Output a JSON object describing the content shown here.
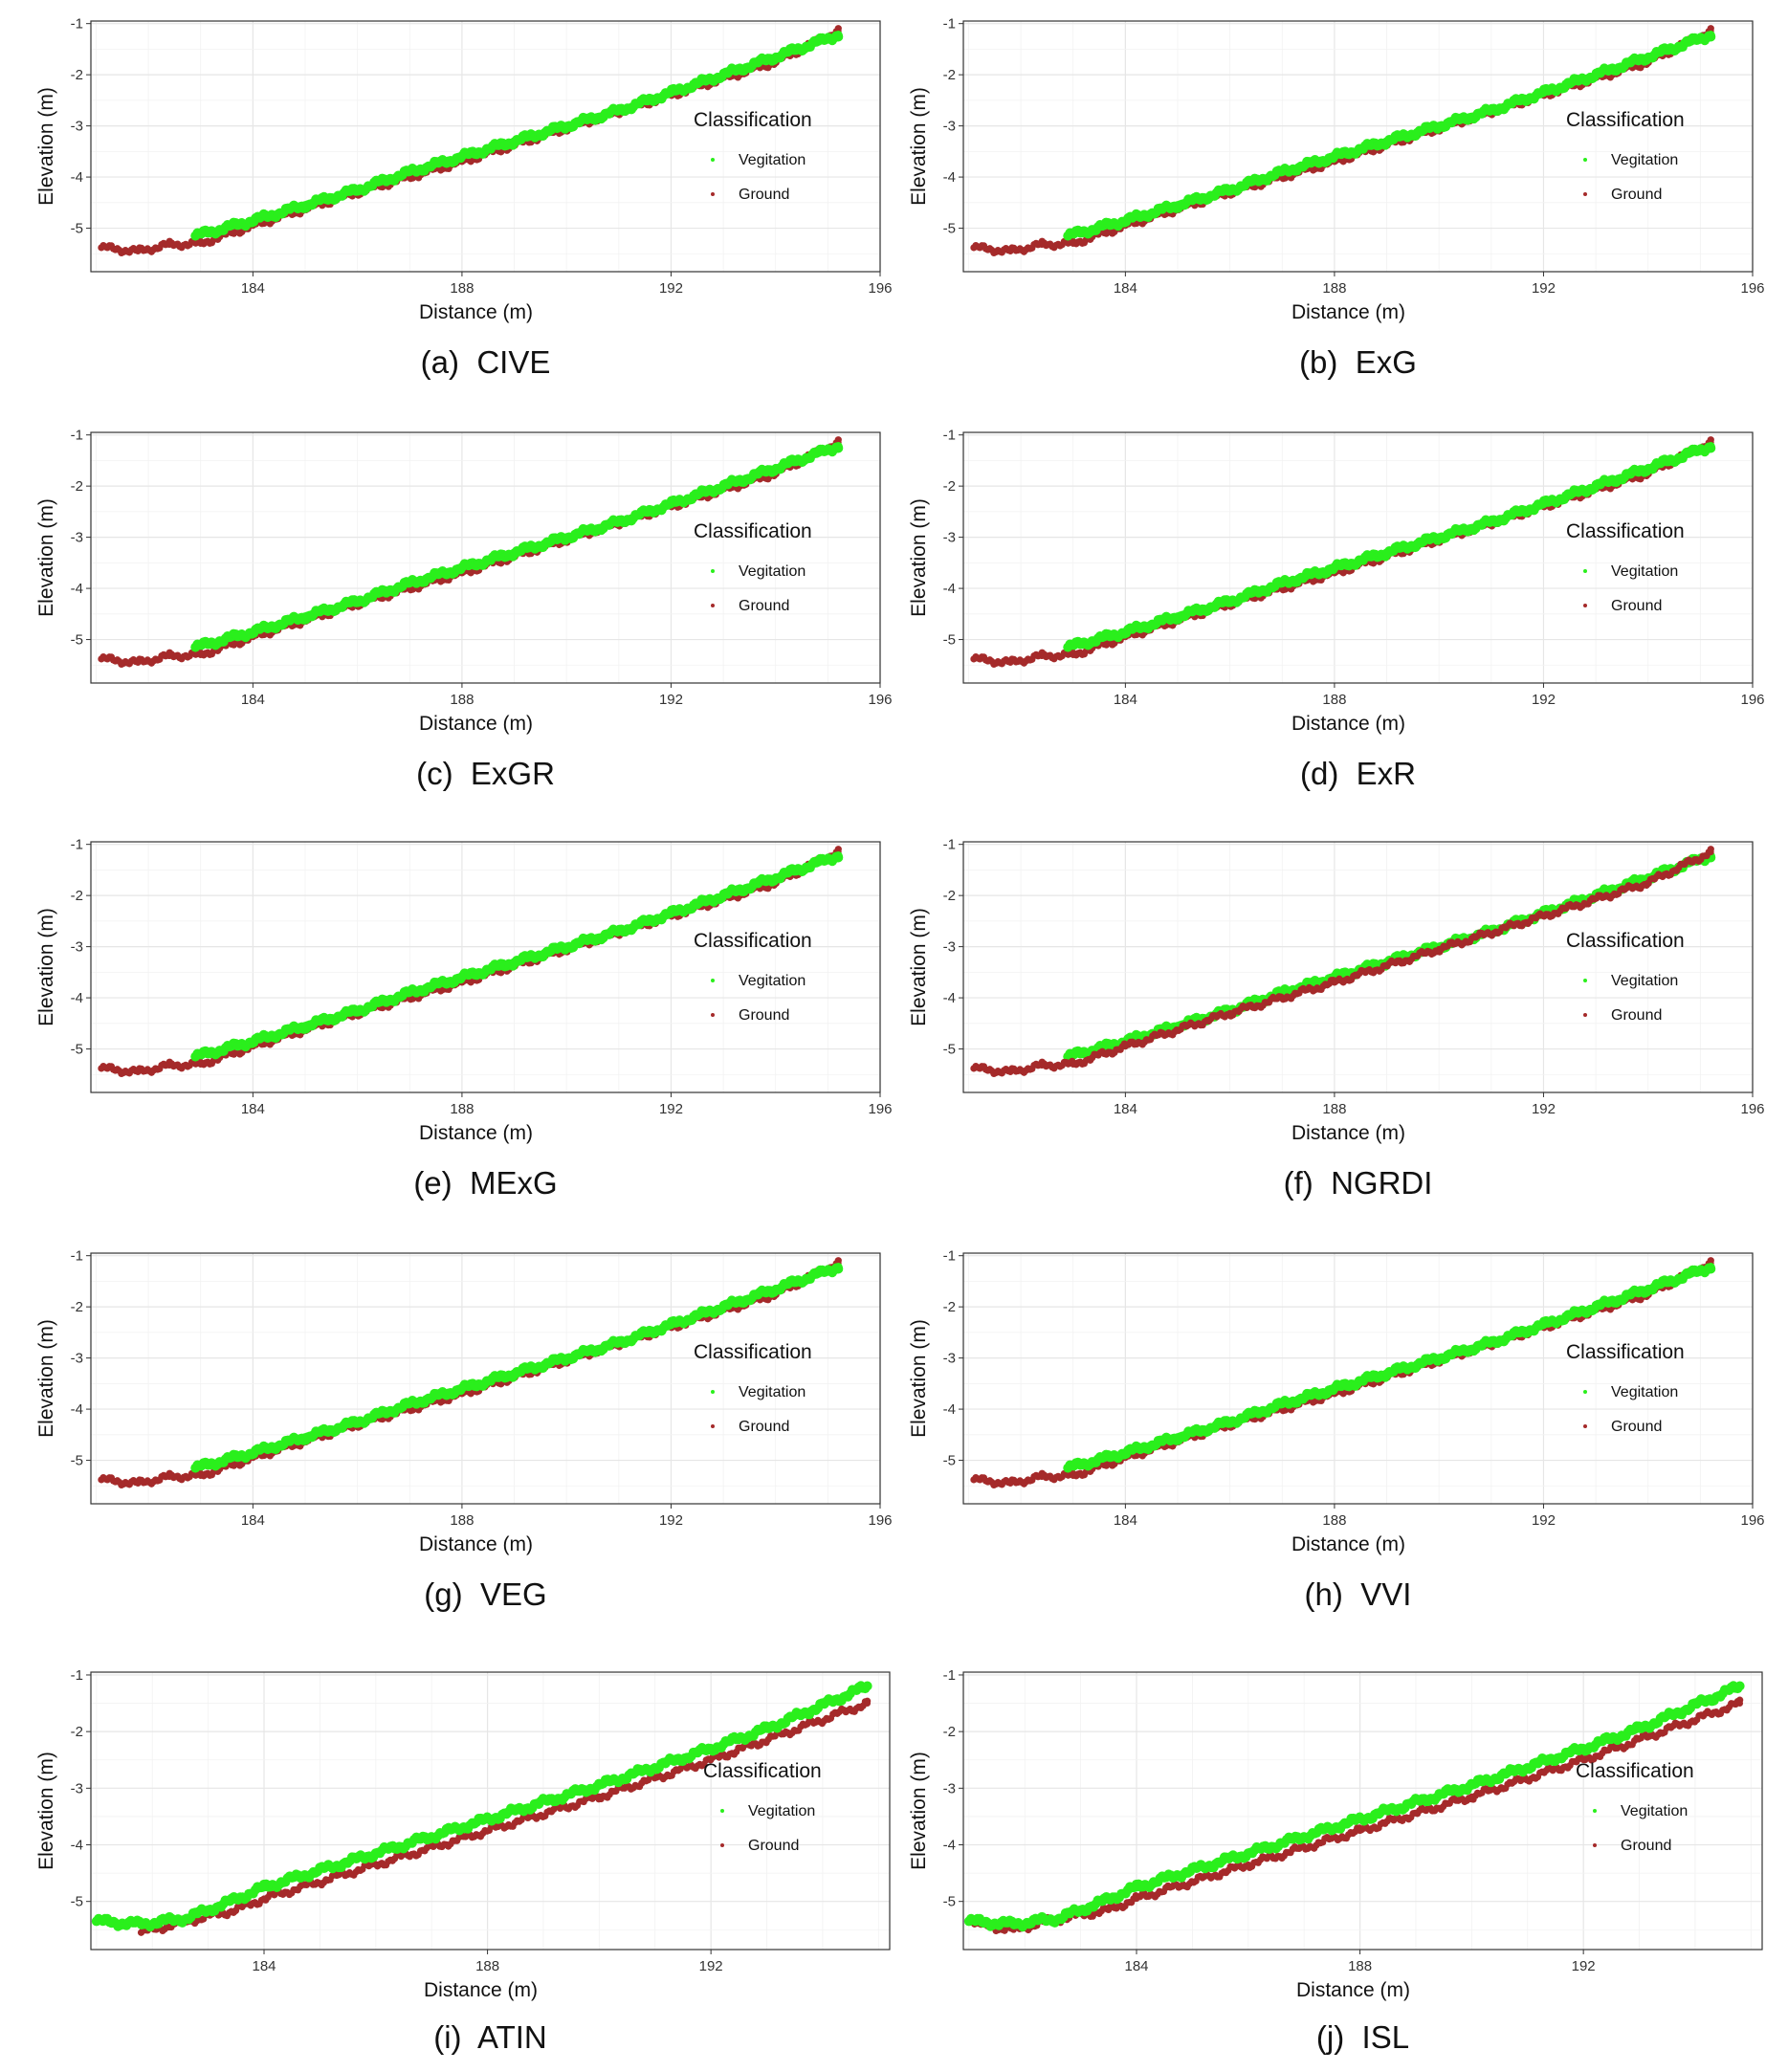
{
  "figure": {
    "series_colors": {
      "Vegitation": "#2aef1c",
      "Ground": "#a52a2a"
    },
    "legend": {
      "title": "Classification",
      "items": [
        "Vegitation",
        "Ground"
      ]
    }
  },
  "chart_data": [
    {
      "type": "scatter",
      "letter": "(a)",
      "name": "CIVE",
      "xlabel": "Distance (m)",
      "ylabel": "Elevation (m)",
      "xlim": [
        180.9,
        196
      ],
      "ylim": [
        -5.85,
        -0.95
      ],
      "xticks": [
        184,
        188,
        192,
        196
      ],
      "yticks": [
        -1,
        -2,
        -3,
        -4,
        -5
      ],
      "grid": true,
      "legend_position": "right",
      "top_layer": "Vegitation",
      "series": [
        {
          "name": "Vegitation",
          "x": [
            182.9,
            184,
            185,
            186,
            187,
            188,
            189,
            190,
            191,
            192,
            193,
            194,
            195.2
          ],
          "y": [
            -5.15,
            -4.85,
            -4.55,
            -4.25,
            -3.9,
            -3.6,
            -3.3,
            -3.0,
            -2.7,
            -2.35,
            -2.0,
            -1.65,
            -1.22
          ]
        },
        {
          "name": "Ground",
          "x": [
            181.1,
            181.8,
            182.4,
            183.0,
            184,
            186,
            188,
            190,
            192,
            194,
            195.2
          ],
          "y": [
            -5.38,
            -5.45,
            -5.32,
            -5.3,
            -4.95,
            -4.3,
            -3.7,
            -3.05,
            -2.4,
            -1.75,
            -1.15
          ]
        }
      ]
    },
    {
      "type": "scatter",
      "letter": "(b)",
      "name": "ExG",
      "xlabel": "Distance (m)",
      "ylabel": "Elevation (m)",
      "xlim": [
        180.9,
        196
      ],
      "ylim": [
        -5.85,
        -0.95
      ],
      "xticks": [
        184,
        188,
        192,
        196
      ],
      "yticks": [
        -1,
        -2,
        -3,
        -4,
        -5
      ],
      "grid": true,
      "legend_position": "right",
      "top_layer": "Vegitation",
      "series": [
        {
          "name": "Vegitation",
          "x": [
            182.9,
            184,
            185,
            186,
            187,
            188,
            189,
            190,
            191,
            192,
            193,
            194,
            195.2
          ],
          "y": [
            -5.15,
            -4.85,
            -4.55,
            -4.25,
            -3.9,
            -3.6,
            -3.3,
            -3.0,
            -2.7,
            -2.35,
            -2.0,
            -1.65,
            -1.22
          ]
        },
        {
          "name": "Ground",
          "x": [
            181.1,
            181.8,
            182.4,
            183.0,
            184,
            186,
            188,
            190,
            192,
            194,
            195.2
          ],
          "y": [
            -5.38,
            -5.45,
            -5.32,
            -5.3,
            -4.95,
            -4.3,
            -3.7,
            -3.05,
            -2.4,
            -1.75,
            -1.15
          ]
        }
      ]
    },
    {
      "type": "scatter",
      "letter": "(c)",
      "name": "ExGR",
      "xlabel": "Distance (m)",
      "ylabel": "Elevation (m)",
      "xlim": [
        180.9,
        196
      ],
      "ylim": [
        -5.85,
        -0.95
      ],
      "xticks": [
        184,
        188,
        192,
        196
      ],
      "yticks": [
        -1,
        -2,
        -3,
        -4,
        -5
      ],
      "grid": true,
      "legend_position": "right",
      "top_layer": "Vegitation",
      "series": [
        {
          "name": "Vegitation",
          "x": [
            182.9,
            184,
            185,
            186,
            187,
            188,
            189,
            190,
            191,
            192,
            193,
            194,
            195.2
          ],
          "y": [
            -5.15,
            -4.85,
            -4.55,
            -4.25,
            -3.9,
            -3.6,
            -3.3,
            -3.0,
            -2.7,
            -2.35,
            -2.0,
            -1.65,
            -1.22
          ]
        },
        {
          "name": "Ground",
          "x": [
            181.1,
            181.8,
            182.4,
            183.0,
            184,
            186,
            188,
            190,
            192,
            194,
            195.2
          ],
          "y": [
            -5.38,
            -5.45,
            -5.32,
            -5.3,
            -4.95,
            -4.3,
            -3.7,
            -3.05,
            -2.4,
            -1.75,
            -1.15
          ]
        }
      ]
    },
    {
      "type": "scatter",
      "letter": "(d)",
      "name": "ExR",
      "xlabel": "Distance (m)",
      "ylabel": "Elevation (m)",
      "xlim": [
        180.9,
        196
      ],
      "ylim": [
        -5.85,
        -0.95
      ],
      "xticks": [
        184,
        188,
        192,
        196
      ],
      "yticks": [
        -1,
        -2,
        -3,
        -4,
        -5
      ],
      "grid": true,
      "legend_position": "right",
      "top_layer": "Vegitation",
      "series": [
        {
          "name": "Vegitation",
          "x": [
            182.9,
            184,
            185,
            186,
            187,
            188,
            189,
            190,
            191,
            192,
            193,
            194,
            195.2
          ],
          "y": [
            -5.15,
            -4.85,
            -4.55,
            -4.25,
            -3.9,
            -3.6,
            -3.3,
            -3.0,
            -2.7,
            -2.35,
            -2.0,
            -1.65,
            -1.22
          ]
        },
        {
          "name": "Ground",
          "x": [
            181.1,
            181.8,
            182.4,
            183.0,
            184,
            186,
            188,
            190,
            192,
            194,
            195.2
          ],
          "y": [
            -5.38,
            -5.45,
            -5.32,
            -5.3,
            -4.95,
            -4.3,
            -3.7,
            -3.05,
            -2.4,
            -1.75,
            -1.15
          ]
        }
      ]
    },
    {
      "type": "scatter",
      "letter": "(e)",
      "name": "MExG",
      "xlabel": "Distance (m)",
      "ylabel": "Elevation (m)",
      "xlim": [
        180.9,
        196
      ],
      "ylim": [
        -5.85,
        -0.95
      ],
      "xticks": [
        184,
        188,
        192,
        196
      ],
      "yticks": [
        -1,
        -2,
        -3,
        -4,
        -5
      ],
      "grid": true,
      "legend_position": "right",
      "top_layer": "Vegitation",
      "series": [
        {
          "name": "Vegitation",
          "x": [
            182.9,
            184,
            185,
            186,
            187,
            188,
            189,
            190,
            191,
            192,
            193,
            194,
            195.2
          ],
          "y": [
            -5.15,
            -4.85,
            -4.55,
            -4.25,
            -3.9,
            -3.6,
            -3.3,
            -3.0,
            -2.7,
            -2.35,
            -2.0,
            -1.65,
            -1.22
          ]
        },
        {
          "name": "Ground",
          "x": [
            181.1,
            181.8,
            182.4,
            183.0,
            184,
            186,
            188,
            190,
            192,
            194,
            195.2
          ],
          "y": [
            -5.38,
            -5.45,
            -5.32,
            -5.3,
            -4.95,
            -4.3,
            -3.7,
            -3.05,
            -2.4,
            -1.75,
            -1.15
          ]
        }
      ]
    },
    {
      "type": "scatter",
      "letter": "(f)",
      "name": "NGRDI",
      "xlabel": "Distance (m)",
      "ylabel": "Elevation (m)",
      "xlim": [
        180.9,
        196
      ],
      "ylim": [
        -5.85,
        -0.95
      ],
      "xticks": [
        184,
        188,
        192,
        196
      ],
      "yticks": [
        -1,
        -2,
        -3,
        -4,
        -5
      ],
      "grid": true,
      "legend_position": "right",
      "top_layer": "Ground",
      "series": [
        {
          "name": "Vegitation",
          "x": [
            182.9,
            184,
            185,
            186,
            187,
            188,
            189,
            190,
            191,
            192,
            193,
            194,
            195.2
          ],
          "y": [
            -5.15,
            -4.85,
            -4.55,
            -4.25,
            -3.9,
            -3.6,
            -3.3,
            -3.0,
            -2.7,
            -2.35,
            -2.0,
            -1.65,
            -1.22
          ]
        },
        {
          "name": "Ground",
          "x": [
            181.1,
            181.8,
            182.4,
            183.0,
            184,
            186,
            188,
            190,
            192,
            194,
            195.2
          ],
          "y": [
            -5.38,
            -5.45,
            -5.32,
            -5.3,
            -4.95,
            -4.3,
            -3.7,
            -3.05,
            -2.4,
            -1.75,
            -1.15
          ]
        }
      ]
    },
    {
      "type": "scatter",
      "letter": "(g)",
      "name": "VEG",
      "xlabel": "Distance (m)",
      "ylabel": "Elevation (m)",
      "xlim": [
        180.9,
        196
      ],
      "ylim": [
        -5.85,
        -0.95
      ],
      "xticks": [
        184,
        188,
        192,
        196
      ],
      "yticks": [
        -1,
        -2,
        -3,
        -4,
        -5
      ],
      "grid": true,
      "legend_position": "right",
      "top_layer": "Vegitation",
      "series": [
        {
          "name": "Vegitation",
          "x": [
            182.9,
            184,
            185,
            186,
            187,
            188,
            189,
            190,
            191,
            192,
            193,
            194,
            195.2
          ],
          "y": [
            -5.15,
            -4.85,
            -4.55,
            -4.25,
            -3.9,
            -3.6,
            -3.3,
            -3.0,
            -2.7,
            -2.35,
            -2.0,
            -1.65,
            -1.22
          ]
        },
        {
          "name": "Ground",
          "x": [
            181.1,
            181.8,
            182.4,
            183.0,
            184,
            186,
            188,
            190,
            192,
            194,
            195.2
          ],
          "y": [
            -5.38,
            -5.45,
            -5.32,
            -5.3,
            -4.95,
            -4.3,
            -3.7,
            -3.05,
            -2.4,
            -1.75,
            -1.15
          ]
        }
      ]
    },
    {
      "type": "scatter",
      "letter": "(h)",
      "name": "VVI",
      "xlabel": "Distance (m)",
      "ylabel": "Elevation (m)",
      "xlim": [
        180.9,
        196
      ],
      "ylim": [
        -5.85,
        -0.95
      ],
      "xticks": [
        184,
        188,
        192,
        196
      ],
      "yticks": [
        -1,
        -2,
        -3,
        -4,
        -5
      ],
      "grid": true,
      "legend_position": "right",
      "top_layer": "Vegitation",
      "series": [
        {
          "name": "Vegitation",
          "x": [
            182.9,
            184,
            185,
            186,
            187,
            188,
            189,
            190,
            191,
            192,
            193,
            194,
            195.2
          ],
          "y": [
            -5.15,
            -4.85,
            -4.55,
            -4.25,
            -3.9,
            -3.6,
            -3.3,
            -3.0,
            -2.7,
            -2.35,
            -2.0,
            -1.65,
            -1.22
          ]
        },
        {
          "name": "Ground",
          "x": [
            181.1,
            181.8,
            182.4,
            183.0,
            184,
            186,
            188,
            190,
            192,
            194,
            195.2
          ],
          "y": [
            -5.38,
            -5.45,
            -5.32,
            -5.3,
            -4.95,
            -4.3,
            -3.7,
            -3.05,
            -2.4,
            -1.75,
            -1.15
          ]
        }
      ]
    },
    {
      "type": "scatter",
      "letter": "(i)",
      "name": "ATIN",
      "xlabel": "Distance (m)",
      "ylabel": "Elevation (m)",
      "xlim": [
        180.9,
        195.2
      ],
      "ylim": [
        -5.85,
        -0.95
      ],
      "xticks": [
        184,
        188,
        192
      ],
      "yticks": [
        -1,
        -2,
        -3,
        -4,
        -5
      ],
      "grid": true,
      "legend_position": "right",
      "top_layer": "Vegitation",
      "series": [
        {
          "name": "Vegitation",
          "x": [
            181.0,
            181.8,
            182.6,
            183.4,
            184,
            186,
            188,
            190,
            192,
            193,
            194.8
          ],
          "y": [
            -5.35,
            -5.4,
            -5.3,
            -5.0,
            -4.75,
            -4.15,
            -3.55,
            -2.95,
            -2.3,
            -1.95,
            -1.2
          ]
        },
        {
          "name": "Ground",
          "x": [
            181.8,
            182.4,
            183.5,
            184,
            186,
            188,
            190,
            192,
            194.8
          ],
          "y": [
            -5.55,
            -5.4,
            -5.15,
            -4.95,
            -4.35,
            -3.75,
            -3.15,
            -2.5,
            -1.5
          ]
        }
      ]
    },
    {
      "type": "scatter",
      "letter": "(j)",
      "name": "ISL",
      "xlabel": "Distance (m)",
      "ylabel": "Elevation (m)",
      "xlim": [
        180.9,
        195.2
      ],
      "ylim": [
        -5.85,
        -0.95
      ],
      "xticks": [
        184,
        188,
        192
      ],
      "yticks": [
        -1,
        -2,
        -3,
        -4,
        -5
      ],
      "grid": true,
      "legend_position": "right",
      "top_layer": "Vegitation",
      "series": [
        {
          "name": "Vegitation",
          "x": [
            181.0,
            181.8,
            182.6,
            183.4,
            184,
            186,
            188,
            190,
            192,
            193,
            194.8
          ],
          "y": [
            -5.35,
            -5.4,
            -5.3,
            -5.0,
            -4.75,
            -4.15,
            -3.55,
            -2.95,
            -2.3,
            -1.95,
            -1.2
          ]
        },
        {
          "name": "Ground",
          "x": [
            181.1,
            181.8,
            182.4,
            183.5,
            184,
            186,
            188,
            190,
            192,
            194.8
          ],
          "y": [
            -5.4,
            -5.5,
            -5.35,
            -5.15,
            -4.95,
            -4.35,
            -3.75,
            -3.15,
            -2.5,
            -1.5
          ]
        }
      ]
    }
  ]
}
